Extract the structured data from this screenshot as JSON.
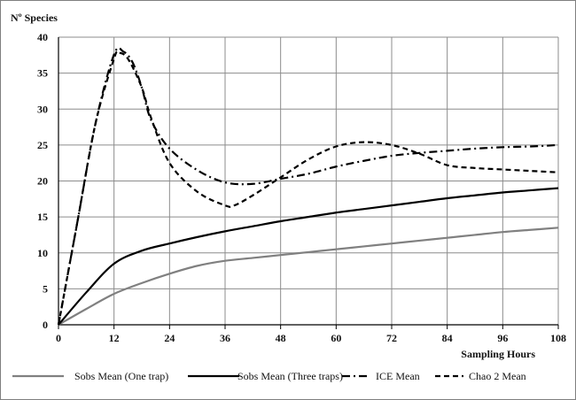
{
  "chart_data": {
    "type": "line",
    "title": "",
    "ylabel": "Nº Species",
    "xlabel": "Sampling Hours",
    "x_ticks": [
      "0",
      "12",
      "24",
      "36",
      "48",
      "60",
      "72",
      "84",
      "96",
      "108"
    ],
    "y_ticks": [
      "0",
      "5",
      "10",
      "15",
      "20",
      "25",
      "30",
      "35",
      "40"
    ],
    "xlim": [
      0,
      108
    ],
    "ylim": [
      0,
      40
    ],
    "grid": true,
    "legend_position": "bottom",
    "series": [
      {
        "name": "Sobs Mean (One trap)",
        "color": "#808080",
        "dash": "solid",
        "x": [
          0,
          6,
          12,
          18,
          24,
          30,
          36,
          42,
          48,
          54,
          60,
          66,
          72,
          78,
          84,
          90,
          96,
          102,
          108
        ],
        "values": [
          0,
          2.2,
          4.3,
          5.8,
          7.1,
          8.2,
          8.9,
          9.3,
          9.7,
          10.1,
          10.5,
          10.9,
          11.3,
          11.7,
          12.1,
          12.5,
          12.9,
          13.2,
          13.5
        ]
      },
      {
        "name": "Sobs Mean (Three traps)",
        "color": "#000000",
        "dash": "solid",
        "x": [
          0,
          6,
          12,
          18,
          24,
          30,
          36,
          42,
          48,
          54,
          60,
          66,
          72,
          78,
          84,
          90,
          96,
          102,
          108
        ],
        "values": [
          0,
          4.5,
          8.5,
          10.3,
          11.3,
          12.2,
          13.0,
          13.7,
          14.4,
          15.0,
          15.6,
          16.1,
          16.6,
          17.1,
          17.6,
          18.0,
          18.4,
          18.7,
          19.0
        ]
      },
      {
        "name": "ICE Mean",
        "color": "#000000",
        "dash": "dashdot",
        "x": [
          0,
          4,
          8,
          12,
          14,
          16,
          18,
          20,
          24,
          30,
          36,
          42,
          48,
          54,
          60,
          66,
          72,
          78,
          84,
          90,
          96,
          102,
          108
        ],
        "values": [
          0,
          14,
          28,
          37.6,
          38.0,
          36.5,
          33.0,
          28.5,
          24.5,
          21.5,
          19.8,
          19.6,
          20.3,
          21.0,
          22.0,
          22.8,
          23.5,
          23.9,
          24.2,
          24.5,
          24.7,
          24.8,
          25.0
        ]
      },
      {
        "name": "Chao 2 Mean",
        "color": "#000000",
        "dash": "dash",
        "x": [
          0,
          4,
          8,
          12,
          13,
          15,
          18,
          20,
          24,
          30,
          36,
          38,
          42,
          48,
          54,
          60,
          66,
          72,
          78,
          84,
          90,
          96,
          102,
          108
        ],
        "values": [
          0,
          14,
          28,
          37.0,
          37.8,
          37.0,
          33.0,
          28.8,
          22.5,
          18.5,
          16.6,
          16.6,
          18.0,
          20.5,
          23.0,
          24.8,
          25.4,
          25.0,
          23.8,
          22.2,
          21.8,
          21.6,
          21.4,
          21.2
        ]
      }
    ]
  }
}
